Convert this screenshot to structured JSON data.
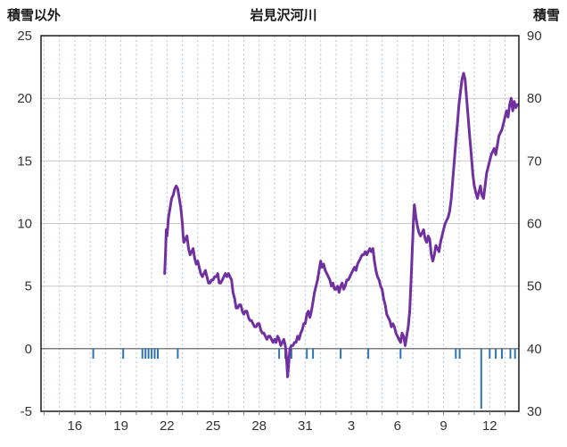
{
  "chart_data": {
    "type": "line",
    "title": "岩見沢河川",
    "left_axis": {
      "label": "積雪以外",
      "min": -5,
      "max": 25,
      "ticks": [
        25,
        20,
        15,
        10,
        5,
        0,
        -5
      ]
    },
    "right_axis": {
      "label": "積雪",
      "min": 30,
      "max": 90,
      "ticks": [
        90,
        80,
        70,
        60,
        50,
        40,
        30
      ]
    },
    "x_axis": {
      "domain_days": [
        13.8,
        44.9
      ],
      "tick_days": [
        16,
        19,
        22,
        25,
        28,
        31,
        34,
        37,
        40,
        43
      ],
      "tick_labels": [
        "16",
        "19",
        "22",
        "25",
        "28",
        "31",
        "3",
        "6",
        "9",
        "12"
      ],
      "grid_interval_days": 1
    },
    "colors": {
      "snow_line": "#7030A0",
      "precip_tick": "#2E75B6",
      "v_grid": "#aec6dc",
      "h_grid": "#c9c9c9",
      "zero_line": "#808080",
      "frame": "#1a1a1a",
      "text": "#333333"
    },
    "grid": {
      "vertical_dashed": true,
      "horizontal_solid": true
    },
    "series": [
      {
        "name": "積雪",
        "axis": "right",
        "style": "line",
        "points": [
          [
            21.85,
            52
          ],
          [
            21.9,
            55
          ],
          [
            21.95,
            59
          ],
          [
            22.0,
            58
          ],
          [
            22.05,
            59.5
          ],
          [
            22.1,
            61
          ],
          [
            22.2,
            62.5
          ],
          [
            22.3,
            64
          ],
          [
            22.4,
            64.5
          ],
          [
            22.5,
            65.5
          ],
          [
            22.6,
            66
          ],
          [
            22.7,
            65.5
          ],
          [
            22.8,
            64
          ],
          [
            22.9,
            62.5
          ],
          [
            23.0,
            60
          ],
          [
            23.05,
            58
          ],
          [
            23.1,
            57
          ],
          [
            23.2,
            57.5
          ],
          [
            23.3,
            58
          ],
          [
            23.4,
            56
          ],
          [
            23.5,
            55
          ],
          [
            23.6,
            55.5
          ],
          [
            23.7,
            56
          ],
          [
            23.8,
            54.5
          ],
          [
            23.9,
            53.5
          ],
          [
            24.0,
            54
          ],
          [
            24.1,
            53
          ],
          [
            24.2,
            52
          ],
          [
            24.3,
            51.5
          ],
          [
            24.4,
            52
          ],
          [
            24.5,
            52.5
          ],
          [
            24.6,
            51.5
          ],
          [
            24.7,
            50.5
          ],
          [
            24.8,
            50.5
          ],
          [
            24.9,
            51
          ],
          [
            25.0,
            51
          ],
          [
            25.1,
            51.5
          ],
          [
            25.2,
            51.5
          ],
          [
            25.3,
            52
          ],
          [
            25.4,
            50.5
          ],
          [
            25.5,
            50.5
          ],
          [
            25.6,
            51
          ],
          [
            25.7,
            51.5
          ],
          [
            25.8,
            52
          ],
          [
            25.9,
            51.5
          ],
          [
            26.0,
            52
          ],
          [
            26.1,
            51.5
          ],
          [
            26.2,
            51
          ],
          [
            26.3,
            49
          ],
          [
            26.4,
            48
          ],
          [
            26.5,
            46.5
          ],
          [
            26.6,
            46.5
          ],
          [
            26.7,
            47
          ],
          [
            26.8,
            47
          ],
          [
            26.9,
            46
          ],
          [
            27.0,
            45.5
          ],
          [
            27.1,
            46
          ],
          [
            27.2,
            46
          ],
          [
            27.3,
            45
          ],
          [
            27.4,
            44.5
          ],
          [
            27.5,
            44.5
          ],
          [
            27.6,
            44
          ],
          [
            27.7,
            43.5
          ],
          [
            27.8,
            43.5
          ],
          [
            27.9,
            44
          ],
          [
            28.0,
            44
          ],
          [
            28.1,
            43
          ],
          [
            28.2,
            42.5
          ],
          [
            28.3,
            42.5
          ],
          [
            28.4,
            42
          ],
          [
            28.5,
            41.5
          ],
          [
            28.6,
            42
          ],
          [
            28.7,
            42
          ],
          [
            28.8,
            41.5
          ],
          [
            28.9,
            41
          ],
          [
            29.0,
            41.5
          ],
          [
            29.1,
            41
          ],
          [
            29.2,
            42
          ],
          [
            29.3,
            41.5
          ],
          [
            29.4,
            40.5
          ],
          [
            29.5,
            41
          ],
          [
            29.6,
            41.5
          ],
          [
            29.7,
            40.5
          ],
          [
            29.75,
            39.5
          ],
          [
            29.8,
            37.5
          ],
          [
            29.85,
            35.5
          ],
          [
            29.9,
            37
          ],
          [
            29.95,
            38.5
          ],
          [
            30.0,
            40
          ],
          [
            30.1,
            40.5
          ],
          [
            30.2,
            40.5
          ],
          [
            30.3,
            41
          ],
          [
            30.4,
            41
          ],
          [
            30.5,
            42
          ],
          [
            30.6,
            41.5
          ],
          [
            30.7,
            42.5
          ],
          [
            30.8,
            43
          ],
          [
            30.9,
            44
          ],
          [
            31.0,
            44
          ],
          [
            31.1,
            45.5
          ],
          [
            31.2,
            46
          ],
          [
            31.3,
            45
          ],
          [
            31.4,
            46
          ],
          [
            31.5,
            47.5
          ],
          [
            31.6,
            49
          ],
          [
            31.7,
            50
          ],
          [
            31.8,
            51
          ],
          [
            31.9,
            52.5
          ],
          [
            32.0,
            54
          ],
          [
            32.1,
            53
          ],
          [
            32.2,
            53.5
          ],
          [
            32.3,
            52.5
          ],
          [
            32.4,
            52
          ],
          [
            32.5,
            51.5
          ],
          [
            32.6,
            51
          ],
          [
            32.7,
            50
          ],
          [
            32.8,
            50.5
          ],
          [
            32.9,
            49.5
          ],
          [
            33.0,
            49.5
          ],
          [
            33.1,
            50
          ],
          [
            33.2,
            49
          ],
          [
            33.3,
            50
          ],
          [
            33.4,
            50.5
          ],
          [
            33.5,
            49.5
          ],
          [
            33.6,
            50
          ],
          [
            33.7,
            51
          ],
          [
            33.8,
            51
          ],
          [
            33.9,
            51.5
          ],
          [
            34.0,
            52
          ],
          [
            34.1,
            52.5
          ],
          [
            34.2,
            53
          ],
          [
            34.3,
            52.5
          ],
          [
            34.4,
            53.5
          ],
          [
            34.5,
            54
          ],
          [
            34.6,
            54.5
          ],
          [
            34.7,
            55
          ],
          [
            34.8,
            55
          ],
          [
            34.9,
            55.5
          ],
          [
            35.0,
            55
          ],
          [
            35.1,
            55.5
          ],
          [
            35.2,
            56
          ],
          [
            35.3,
            55.5
          ],
          [
            35.4,
            56
          ],
          [
            35.5,
            54
          ],
          [
            35.6,
            52.5
          ],
          [
            35.7,
            51.5
          ],
          [
            35.8,
            51
          ],
          [
            35.9,
            50
          ],
          [
            36.0,
            49.5
          ],
          [
            36.1,
            48
          ],
          [
            36.2,
            47
          ],
          [
            36.3,
            45.5
          ],
          [
            36.4,
            45
          ],
          [
            36.5,
            44.5
          ],
          [
            36.6,
            43.5
          ],
          [
            36.7,
            44
          ],
          [
            36.8,
            43.5
          ],
          [
            36.9,
            42.5
          ],
          [
            37.0,
            42
          ],
          [
            37.1,
            41.5
          ],
          [
            37.2,
            41
          ],
          [
            37.3,
            42.5
          ],
          [
            37.4,
            42
          ],
          [
            37.5,
            40.5
          ],
          [
            37.6,
            42
          ],
          [
            37.7,
            43.5
          ],
          [
            37.8,
            46
          ],
          [
            37.9,
            52
          ],
          [
            38.0,
            58
          ],
          [
            38.05,
            61
          ],
          [
            38.1,
            63
          ],
          [
            38.2,
            61
          ],
          [
            38.3,
            59.5
          ],
          [
            38.4,
            58.5
          ],
          [
            38.5,
            58
          ],
          [
            38.6,
            58.5
          ],
          [
            38.7,
            59
          ],
          [
            38.8,
            57.5
          ],
          [
            38.9,
            57
          ],
          [
            39.0,
            58
          ],
          [
            39.1,
            57.5
          ],
          [
            39.2,
            55
          ],
          [
            39.3,
            54
          ],
          [
            39.4,
            55
          ],
          [
            39.5,
            56.5
          ],
          [
            39.6,
            56
          ],
          [
            39.7,
            55.5
          ],
          [
            39.8,
            57
          ],
          [
            39.9,
            58
          ],
          [
            40.0,
            59
          ],
          [
            40.1,
            60
          ],
          [
            40.2,
            60.5
          ],
          [
            40.3,
            61
          ],
          [
            40.4,
            62
          ],
          [
            40.5,
            64
          ],
          [
            40.6,
            67
          ],
          [
            40.7,
            70
          ],
          [
            40.8,
            73
          ],
          [
            40.9,
            76
          ],
          [
            41.0,
            79
          ],
          [
            41.1,
            81
          ],
          [
            41.2,
            83
          ],
          [
            41.3,
            84
          ],
          [
            41.4,
            83
          ],
          [
            41.5,
            80
          ],
          [
            41.6,
            77
          ],
          [
            41.7,
            74
          ],
          [
            41.8,
            71
          ],
          [
            41.9,
            68
          ],
          [
            42.0,
            66
          ],
          [
            42.1,
            65
          ],
          [
            42.2,
            64
          ],
          [
            42.3,
            65
          ],
          [
            42.4,
            66
          ],
          [
            42.5,
            64.5
          ],
          [
            42.6,
            64
          ],
          [
            42.7,
            66
          ],
          [
            42.8,
            68
          ],
          [
            42.9,
            69
          ],
          [
            43.0,
            70
          ],
          [
            43.1,
            71
          ],
          [
            43.2,
            71.5
          ],
          [
            43.3,
            72
          ],
          [
            43.4,
            71
          ],
          [
            43.5,
            72.5
          ],
          [
            43.6,
            74
          ],
          [
            43.7,
            74.5
          ],
          [
            43.8,
            75
          ],
          [
            43.9,
            76
          ],
          [
            44.0,
            77
          ],
          [
            44.1,
            78
          ],
          [
            44.2,
            77
          ],
          [
            44.3,
            79
          ],
          [
            44.4,
            80
          ],
          [
            44.5,
            78
          ],
          [
            44.6,
            79.5
          ],
          [
            44.7,
            78.5
          ],
          [
            44.8,
            79
          ]
        ]
      },
      {
        "name": "積雪以外",
        "axis": "left",
        "style": "down-ticks",
        "points": [
          [
            17.2,
            -0.8
          ],
          [
            19.15,
            -0.8
          ],
          [
            20.4,
            -0.8
          ],
          [
            20.6,
            -0.8
          ],
          [
            20.8,
            -0.8
          ],
          [
            21.0,
            -0.8
          ],
          [
            21.2,
            -0.8
          ],
          [
            21.4,
            -0.8
          ],
          [
            22.7,
            -0.8
          ],
          [
            29.3,
            -0.8
          ],
          [
            29.7,
            -0.8
          ],
          [
            30.1,
            -0.8
          ],
          [
            31.1,
            -0.8
          ],
          [
            31.5,
            -0.8
          ],
          [
            33.3,
            -0.8
          ],
          [
            35.1,
            -0.8
          ],
          [
            37.2,
            -0.8
          ],
          [
            40.8,
            -0.8
          ],
          [
            41.05,
            -0.8
          ],
          [
            42.45,
            -4.8
          ],
          [
            43.0,
            -0.8
          ],
          [
            43.4,
            -0.8
          ],
          [
            43.8,
            -0.8
          ],
          [
            44.35,
            -0.8
          ],
          [
            44.65,
            -0.8
          ]
        ]
      }
    ]
  }
}
